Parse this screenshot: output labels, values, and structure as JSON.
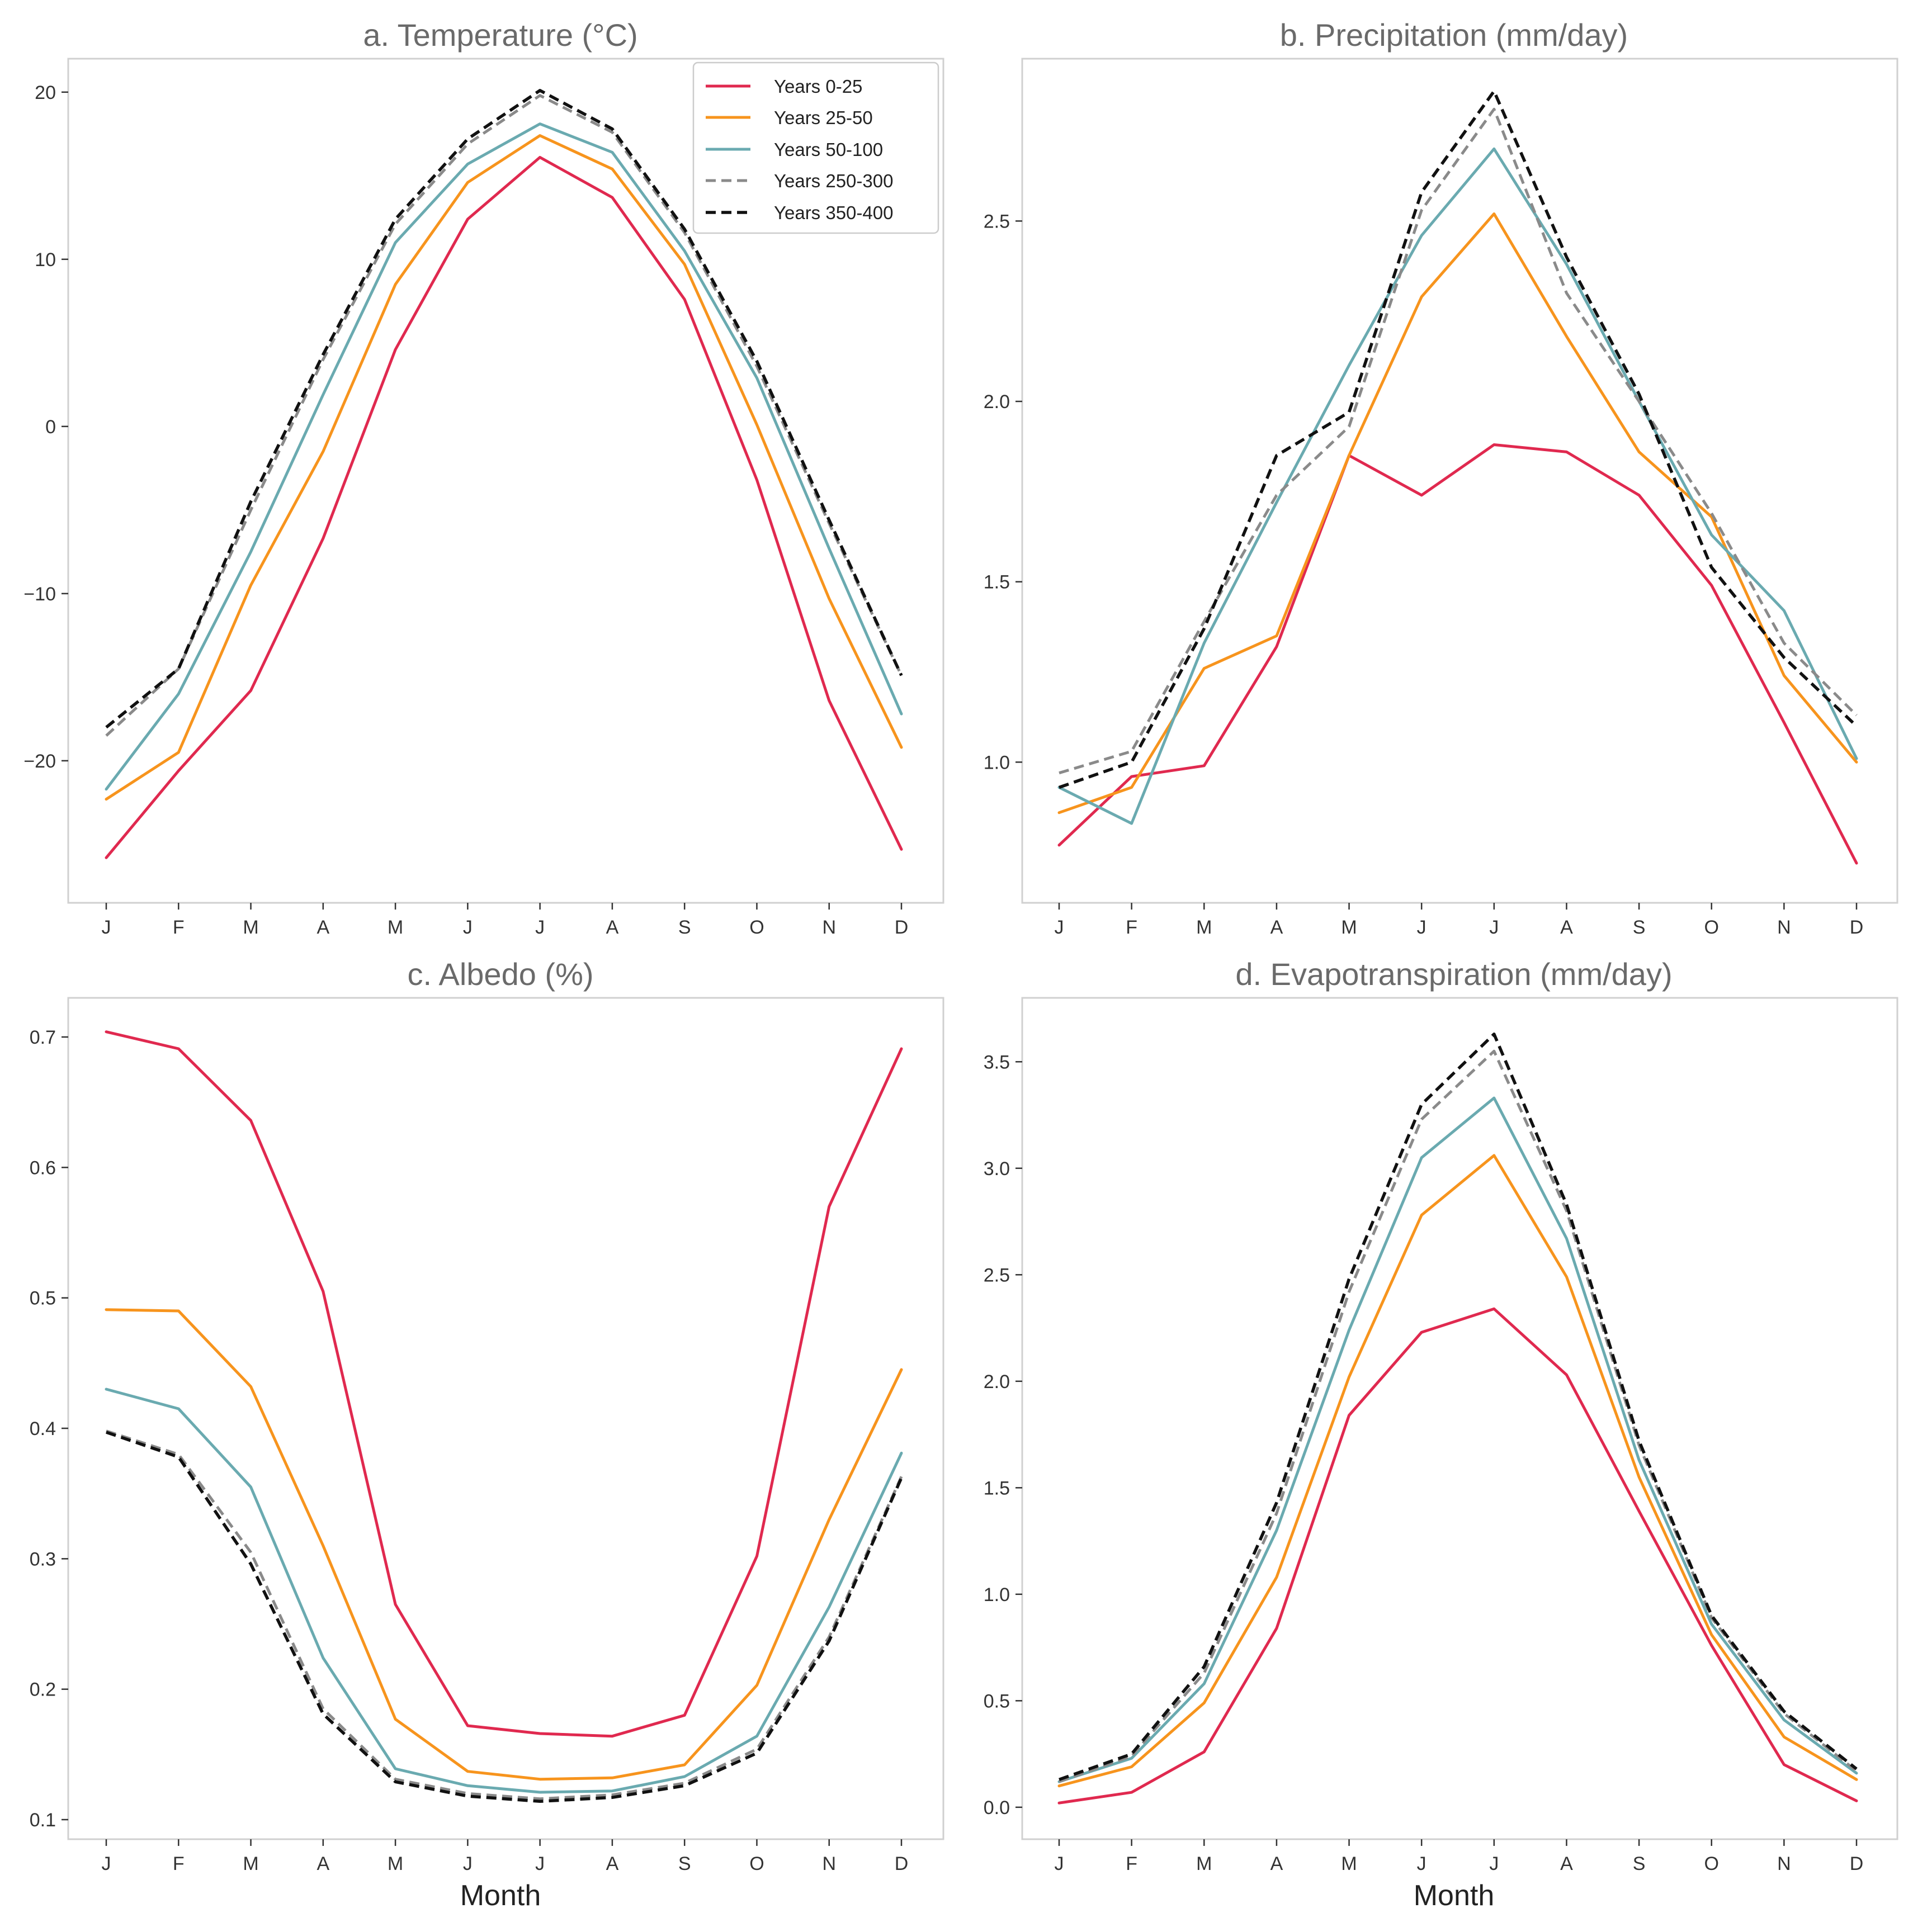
{
  "months": [
    "J",
    "F",
    "M",
    "A",
    "M",
    "J",
    "J",
    "A",
    "S",
    "O",
    "N",
    "D"
  ],
  "legend": {
    "items": [
      {
        "label": "Years 0-25",
        "color": "#e0294f",
        "dash": false
      },
      {
        "label": "Years 25-50",
        "color": "#f7941d",
        "dash": false
      },
      {
        "label": "Years 50-100",
        "color": "#6aaab0",
        "dash": false
      },
      {
        "label": "Years 250-300",
        "color": "#8a8a8a",
        "dash": true
      },
      {
        "label": "Years 350-400",
        "color": "#111111",
        "dash": true
      }
    ]
  },
  "chart_data": [
    {
      "type": "line",
      "title": "a. Temperature (°C)",
      "xlabel": "",
      "ylabel": "",
      "ylim": [
        -28.5,
        22
      ],
      "yticks": [
        -20,
        -10,
        0,
        10,
        20
      ],
      "ytick_labels": [
        "−20",
        "−10",
        "0",
        "10",
        "20"
      ],
      "categories": [
        "J",
        "F",
        "M",
        "A",
        "M",
        "J",
        "J",
        "A",
        "S",
        "O",
        "N",
        "D"
      ],
      "legend": "top-right",
      "series": [
        {
          "name": "Years 0-25",
          "values": [
            -25.8,
            -20.6,
            -15.8,
            -6.7,
            4.6,
            12.4,
            16.1,
            13.7,
            7.6,
            -3.2,
            -16.4,
            -25.3
          ]
        },
        {
          "name": "Years 25-50",
          "values": [
            -22.3,
            -19.5,
            -9.5,
            -1.5,
            8.5,
            14.6,
            17.4,
            15.4,
            9.7,
            0.1,
            -10.3,
            -19.2
          ]
        },
        {
          "name": "Years 50-100",
          "values": [
            -21.7,
            -16.0,
            -7.5,
            1.9,
            11.0,
            15.7,
            18.1,
            16.4,
            10.5,
            2.9,
            -7.3,
            -17.2
          ]
        },
        {
          "name": "Years 250-300",
          "values": [
            -18.5,
            -14.5,
            -5.0,
            4.0,
            12.1,
            16.9,
            19.8,
            17.6,
            11.6,
            3.6,
            -5.8,
            -14.9
          ]
        },
        {
          "name": "Years 350-400",
          "values": [
            -18.0,
            -14.5,
            -4.5,
            4.3,
            12.4,
            17.2,
            20.1,
            17.8,
            11.8,
            3.9,
            -5.6,
            -14.9
          ]
        }
      ]
    },
    {
      "type": "line",
      "title": "b. Precipitation (mm/day)",
      "xlabel": "",
      "ylabel": "",
      "ylim": [
        0.61,
        2.95
      ],
      "yticks": [
        1.0,
        1.5,
        2.0,
        2.5
      ],
      "ytick_labels": [
        "1.0",
        "1.5",
        "2.0",
        "2.5"
      ],
      "categories": [
        "J",
        "F",
        "M",
        "A",
        "M",
        "J",
        "J",
        "A",
        "S",
        "O",
        "N",
        "D"
      ],
      "series": [
        {
          "name": "Years 0-25",
          "values": [
            0.77,
            0.96,
            0.99,
            1.32,
            1.85,
            1.74,
            1.88,
            1.86,
            1.74,
            1.49,
            1.11,
            0.72
          ]
        },
        {
          "name": "Years 25-50",
          "values": [
            0.86,
            0.93,
            1.26,
            1.35,
            1.85,
            2.29,
            2.52,
            2.18,
            1.86,
            1.68,
            1.24,
            1.0
          ]
        },
        {
          "name": "Years 50-100",
          "values": [
            0.93,
            0.83,
            1.33,
            1.72,
            2.1,
            2.46,
            2.7,
            2.38,
            2.0,
            1.63,
            1.42,
            1.01
          ]
        },
        {
          "name": "Years 250-300",
          "values": [
            0.97,
            1.03,
            1.39,
            1.74,
            1.93,
            2.53,
            2.81,
            2.3,
            2.0,
            1.69,
            1.33,
            1.13
          ]
        },
        {
          "name": "Years 350-400",
          "values": [
            0.93,
            1.0,
            1.37,
            1.85,
            1.97,
            2.58,
            2.86,
            2.4,
            2.02,
            1.54,
            1.29,
            1.1
          ]
        }
      ]
    },
    {
      "type": "line",
      "title": "c. Albedo (%)",
      "xlabel": "Month",
      "ylabel": "",
      "ylim": [
        0.085,
        0.73
      ],
      "yticks": [
        0.1,
        0.2,
        0.3,
        0.4,
        0.5,
        0.6,
        0.7
      ],
      "ytick_labels": [
        "0.1",
        "0.2",
        "0.3",
        "0.4",
        "0.5",
        "0.6",
        "0.7"
      ],
      "categories": [
        "J",
        "F",
        "M",
        "A",
        "M",
        "J",
        "J",
        "A",
        "S",
        "O",
        "N",
        "D"
      ],
      "series": [
        {
          "name": "Years 0-25",
          "values": [
            0.704,
            0.691,
            0.636,
            0.505,
            0.265,
            0.172,
            0.166,
            0.164,
            0.18,
            0.302,
            0.57,
            0.691
          ]
        },
        {
          "name": "Years 25-50",
          "values": [
            0.491,
            0.49,
            0.432,
            0.31,
            0.177,
            0.137,
            0.131,
            0.132,
            0.142,
            0.203,
            0.33,
            0.445
          ]
        },
        {
          "name": "Years 50-100",
          "values": [
            0.43,
            0.415,
            0.355,
            0.224,
            0.139,
            0.126,
            0.121,
            0.122,
            0.133,
            0.164,
            0.263,
            0.381
          ]
        },
        {
          "name": "Years 250-300",
          "values": [
            0.398,
            0.38,
            0.305,
            0.185,
            0.131,
            0.12,
            0.116,
            0.119,
            0.128,
            0.154,
            0.24,
            0.363
          ]
        },
        {
          "name": "Years 350-400",
          "values": [
            0.397,
            0.378,
            0.296,
            0.181,
            0.129,
            0.118,
            0.114,
            0.117,
            0.126,
            0.151,
            0.237,
            0.362
          ]
        }
      ]
    },
    {
      "type": "line",
      "title": "d. Evapotranspiration (mm/day)",
      "xlabel": "Month",
      "ylabel": "",
      "ylim": [
        -0.15,
        3.8
      ],
      "yticks": [
        0.0,
        0.5,
        1.0,
        1.5,
        2.0,
        2.5,
        3.0,
        3.5
      ],
      "ytick_labels": [
        "0.0",
        "0.5",
        "1.0",
        "1.5",
        "2.0",
        "2.5",
        "3.0",
        "3.5"
      ],
      "categories": [
        "J",
        "F",
        "M",
        "A",
        "M",
        "J",
        "J",
        "A",
        "S",
        "O",
        "N",
        "D"
      ],
      "series": [
        {
          "name": "Years 0-25",
          "values": [
            0.02,
            0.07,
            0.26,
            0.84,
            1.84,
            2.23,
            2.34,
            2.03,
            1.39,
            0.76,
            0.2,
            0.03
          ]
        },
        {
          "name": "Years 25-50",
          "values": [
            0.1,
            0.19,
            0.49,
            1.08,
            2.02,
            2.78,
            3.06,
            2.49,
            1.55,
            0.81,
            0.33,
            0.13
          ]
        },
        {
          "name": "Years 50-100",
          "values": [
            0.12,
            0.23,
            0.58,
            1.3,
            2.24,
            3.05,
            3.33,
            2.67,
            1.63,
            0.86,
            0.41,
            0.16
          ]
        },
        {
          "name": "Years 250-300",
          "values": [
            0.12,
            0.24,
            0.63,
            1.38,
            2.42,
            3.23,
            3.55,
            2.8,
            1.7,
            0.89,
            0.44,
            0.17
          ]
        },
        {
          "name": "Years 350-400",
          "values": [
            0.13,
            0.25,
            0.66,
            1.43,
            2.48,
            3.3,
            3.63,
            2.83,
            1.72,
            0.9,
            0.45,
            0.18
          ]
        }
      ]
    }
  ]
}
